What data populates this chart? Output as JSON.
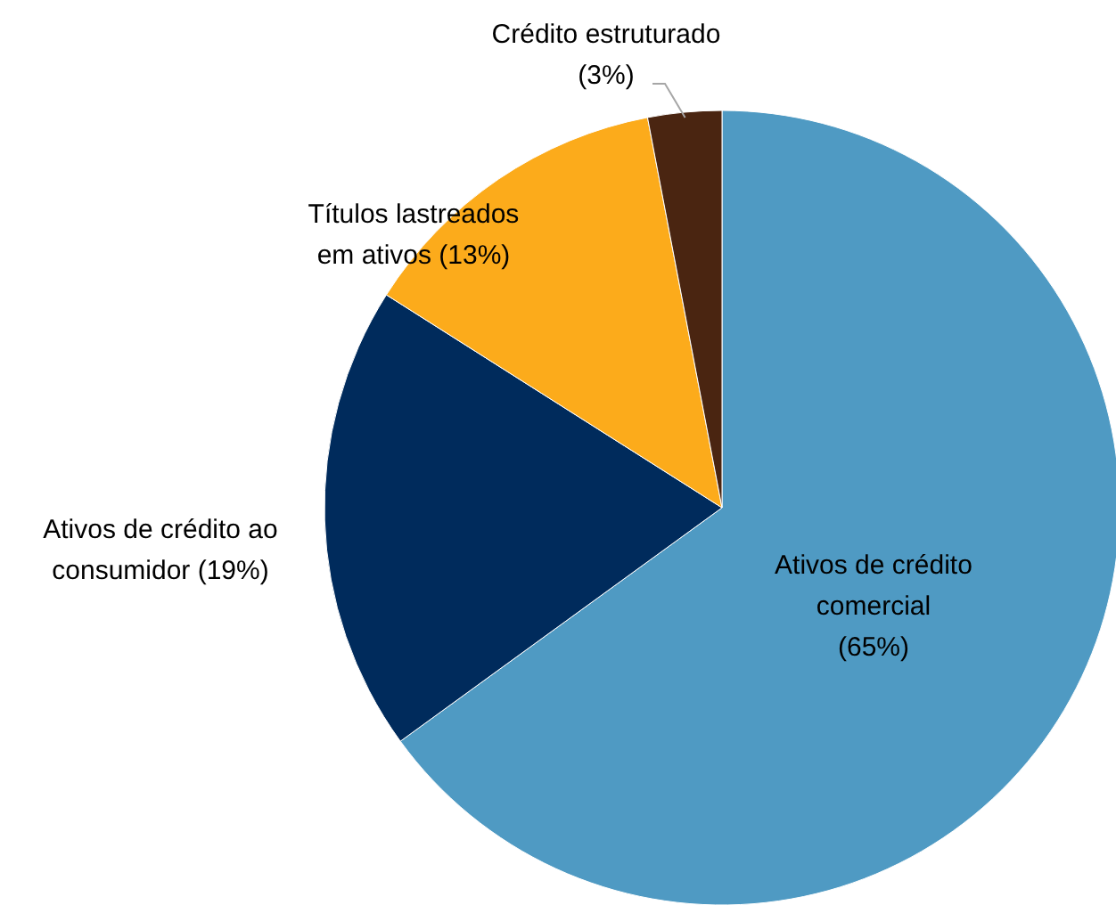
{
  "chart_data": {
    "type": "pie",
    "categories": [
      "Ativos de crédito comercial",
      "Ativos de crédito ao consumidor",
      "Títulos lastreados em ativos",
      "Crédito estruturado"
    ],
    "values": [
      65,
      19,
      13,
      3
    ],
    "value_labels": [
      "(65%)",
      "(19%)",
      "(13%)",
      "(3%)"
    ],
    "colors": [
      "#4f9ac3",
      "#002b5c",
      "#fcab1b",
      "#4a2511"
    ]
  }
}
